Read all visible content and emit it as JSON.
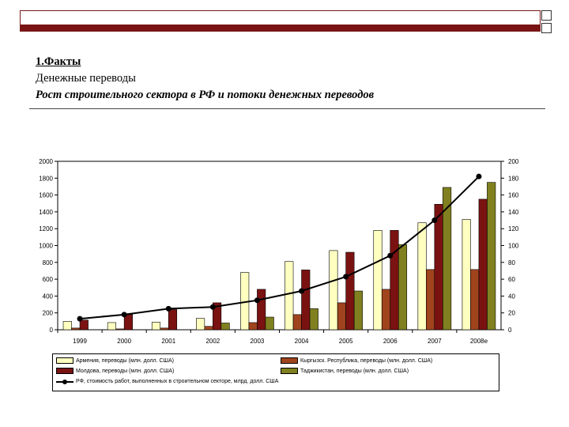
{
  "slide": {
    "heading_line1": "1.Факты",
    "heading_line2": "Денежные переводы",
    "heading_line3": "Рост строительного сектора в РФ и потоки денежных переводов"
  },
  "colors": {
    "armenia": "#ffffc0",
    "kyrgyz": "#a0441e",
    "moldova": "#7a1212",
    "tajik": "#808020",
    "line": "#000000",
    "frame": "#7a1414"
  },
  "chart_data": {
    "type": "bar",
    "categories": [
      "1999",
      "2000",
      "2001",
      "2002",
      "2003",
      "2004",
      "2005",
      "2006",
      "2007",
      "2008e"
    ],
    "y_left": {
      "ylim": [
        0,
        2000
      ],
      "ticks": [
        "0",
        "200",
        "400",
        "600",
        "800",
        "1000",
        "1200",
        "1400",
        "1600",
        "1800",
        "2000"
      ]
    },
    "y_right": {
      "ylim": [
        0,
        200
      ],
      "ticks": [
        "0",
        "20",
        "40",
        "60",
        "80",
        "100",
        "120",
        "140",
        "160",
        "180",
        "200"
      ]
    },
    "series": [
      {
        "name": "Армения, переводы (млн. долл. США)",
        "axis": "left",
        "values": [
          100,
          85,
          90,
          135,
          680,
          810,
          940,
          1180,
          1270,
          1310
        ]
      },
      {
        "name": "Кыргызск. Республика, переводы (млн. долл. США)",
        "axis": "left",
        "values": [
          20,
          10,
          20,
          40,
          85,
          180,
          320,
          480,
          715,
          715
        ]
      },
      {
        "name": "Молдова, переводы (млн. долл. США)",
        "axis": "left",
        "values": [
          115,
          180,
          240,
          320,
          480,
          710,
          920,
          1180,
          1490,
          1550
        ]
      },
      {
        "name": "Таджикистан, переводы (млн. долл. США)",
        "axis": "left",
        "values": [
          0,
          0,
          0,
          80,
          150,
          250,
          460,
          1010,
          1690,
          1750
        ]
      },
      {
        "name": "РФ, стоимость работ, выполненных в строительном секторе, млрд. долл. США",
        "axis": "right",
        "type": "line",
        "values": [
          13,
          18,
          25,
          27,
          35,
          46,
          63,
          88,
          130,
          182
        ]
      }
    ]
  }
}
